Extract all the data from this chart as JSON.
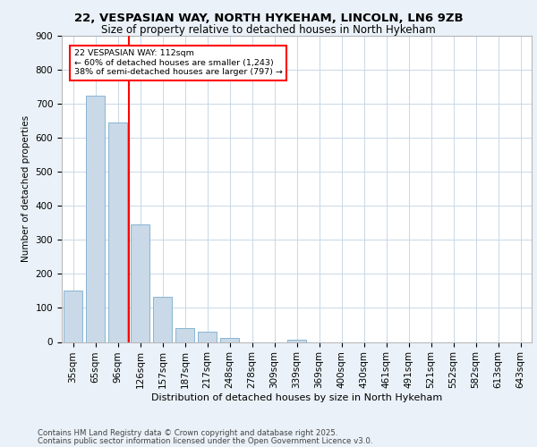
{
  "title1": "22, VESPASIAN WAY, NORTH HYKEHAM, LINCOLN, LN6 9ZB",
  "title2": "Size of property relative to detached houses in North Hykeham",
  "xlabel": "Distribution of detached houses by size in North Hykeham",
  "ylabel": "Number of detached properties",
  "bar_labels": [
    "35sqm",
    "65sqm",
    "96sqm",
    "126sqm",
    "157sqm",
    "187sqm",
    "217sqm",
    "248sqm",
    "278sqm",
    "309sqm",
    "339sqm",
    "369sqm",
    "400sqm",
    "430sqm",
    "461sqm",
    "491sqm",
    "521sqm",
    "552sqm",
    "582sqm",
    "613sqm",
    "643sqm"
  ],
  "bar_values": [
    150,
    725,
    645,
    345,
    133,
    42,
    30,
    12,
    0,
    0,
    7,
    0,
    0,
    0,
    0,
    0,
    0,
    0,
    0,
    0,
    0
  ],
  "bar_color": "#c9d9e8",
  "bar_edgecolor": "#7aaccc",
  "vline_x": 2.5,
  "vline_color": "red",
  "annotation_title": "22 VESPASIAN WAY: 112sqm",
  "annotation_line1": "← 60% of detached houses are smaller (1,243)",
  "annotation_line2": "38% of semi-detached houses are larger (797) →",
  "annotation_box_color": "white",
  "annotation_box_edgecolor": "red",
  "footer1": "Contains HM Land Registry data © Crown copyright and database right 2025.",
  "footer2": "Contains public sector information licensed under the Open Government Licence v3.0.",
  "ylim": [
    0,
    900
  ],
  "bg_color": "#eaf1f8",
  "plot_bg_color": "white",
  "grid_color": "#c8d8e8"
}
